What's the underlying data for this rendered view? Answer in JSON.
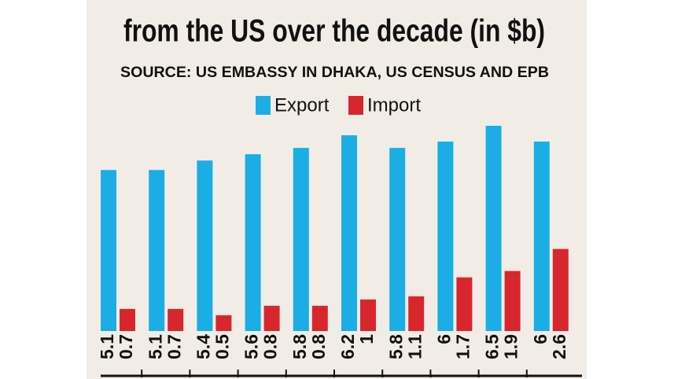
{
  "chart_data": {
    "type": "bar",
    "title": "from the US over the decade (in $b)",
    "subtitle": "SOURCE: US EMBASSY IN DHAKA, US CENSUS AND EPB",
    "categories": [
      null,
      null,
      null,
      null,
      null,
      null,
      null,
      null,
      null,
      null
    ],
    "series": [
      {
        "name": "Export",
        "color": "#1aaee5",
        "values": [
          5.1,
          5.1,
          5.4,
          5.6,
          5.8,
          6.2,
          5.8,
          6,
          6.5,
          6
        ]
      },
      {
        "name": "Import",
        "color": "#d8262e",
        "values": [
          0.7,
          0.7,
          0.5,
          0.8,
          0.8,
          1,
          1.1,
          1.7,
          1.9,
          2.6
        ]
      }
    ]
  }
}
